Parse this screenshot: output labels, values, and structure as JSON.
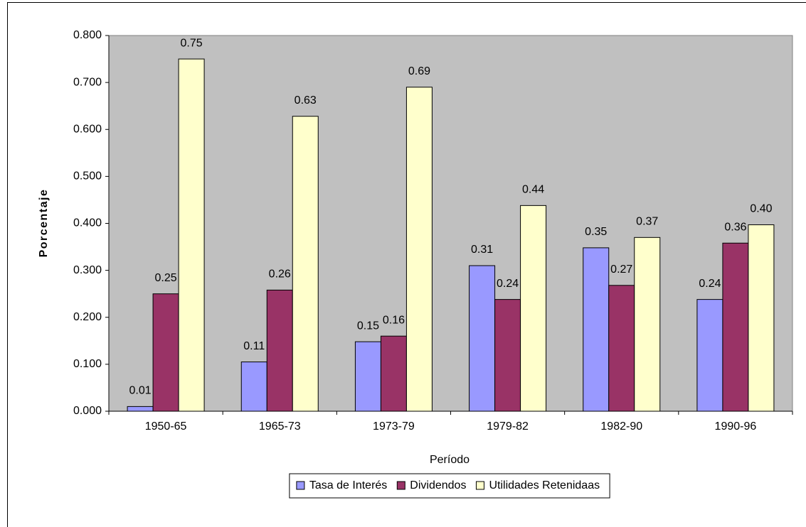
{
  "chart_data": {
    "type": "bar",
    "categories": [
      "1950-65",
      "1965-73",
      "1973-79",
      "1979-82",
      "1982-90",
      "1990-96"
    ],
    "series": [
      {
        "name": "Tasa de Interés",
        "color": "#9999ff",
        "values": [
          0.01,
          0.105,
          0.148,
          0.31,
          0.348,
          0.238
        ],
        "value_labels": [
          "0.01",
          "0.11",
          "0.15",
          "0.31",
          "0.35",
          "0.24"
        ]
      },
      {
        "name": "Dividendos",
        "color": "#993366",
        "values": [
          0.25,
          0.258,
          0.16,
          0.238,
          0.268,
          0.358
        ],
        "value_labels": [
          "0.25",
          "0.26",
          "0.16",
          "0.24",
          "0.27",
          "0.36"
        ]
      },
      {
        "name": "Utilidades Retenidaas",
        "color": "#ffffcc",
        "values": [
          0.75,
          0.628,
          0.69,
          0.438,
          0.37,
          0.397
        ],
        "value_labels": [
          "0.75",
          "0.63",
          "0.69",
          "0.44",
          "0.37",
          "0.40"
        ]
      }
    ],
    "xlabel": "Período",
    "ylabel": "Porcentaje",
    "ylim": [
      0,
      0.8
    ],
    "yticks": [
      {
        "value": 0,
        "label": "0.000"
      },
      {
        "value": 0.1,
        "label": "0.100"
      },
      {
        "value": 0.2,
        "label": "0.200"
      },
      {
        "value": 0.3,
        "label": "0.300"
      },
      {
        "value": 0.4,
        "label": "0.400"
      },
      {
        "value": 0.5,
        "label": "0.500"
      },
      {
        "value": 0.6,
        "label": "0.600"
      },
      {
        "value": 0.7,
        "label": "0.700"
      },
      {
        "value": 0.8,
        "label": "0.800"
      }
    ],
    "legend": "bottom",
    "plot_background": "#c0c0c0"
  }
}
